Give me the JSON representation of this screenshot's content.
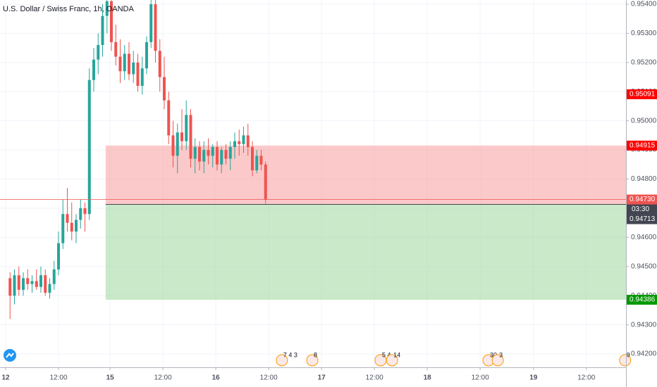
{
  "chart_data": {
    "type": "candlestick",
    "title": "U.S. Dollar / Swiss Franc, 1h, OANDA",
    "up_color": "#26a69a",
    "down_color": "#ef5350",
    "x": [
      1,
      2,
      3,
      4,
      5,
      6,
      7,
      8,
      9,
      10,
      11,
      12,
      13,
      14,
      15,
      16,
      17,
      18,
      19,
      20,
      21,
      22,
      23,
      24,
      25,
      26,
      27,
      28,
      29,
      30,
      31,
      32,
      33,
      34,
      35,
      36,
      37,
      38,
      39,
      40,
      41,
      42,
      43,
      44,
      45,
      46,
      47,
      48,
      49,
      50,
      51,
      52,
      53,
      54,
      55,
      56,
      57,
      58,
      59
    ],
    "open": [
      0.9446,
      0.944,
      0.9447,
      0.9442,
      0.9446,
      0.9444,
      0.9445,
      0.9443,
      0.9447,
      0.9441,
      0.9444,
      0.9449,
      0.9458,
      0.9468,
      0.9465,
      0.9462,
      0.9466,
      0.947,
      0.9468,
      0.9514,
      0.9521,
      0.9526,
      0.9536,
      0.9541,
      0.9527,
      0.9522,
      0.9517,
      0.9523,
      0.9516,
      0.952,
      0.9512,
      0.9518,
      0.9527,
      0.954,
      0.9524,
      0.9515,
      0.9507,
      0.9495,
      0.9488,
      0.9496,
      0.9493,
      0.9502,
      0.9487,
      0.9491,
      0.9486,
      0.949,
      0.9488,
      0.9491,
      0.9485,
      0.949,
      0.9487,
      0.9491,
      0.9493,
      0.9492,
      0.9495,
      0.9491,
      0.9483,
      0.9488,
      0.9485
    ],
    "high": [
      0.9448,
      0.9449,
      0.945,
      0.9448,
      0.9449,
      0.9447,
      0.9449,
      0.945,
      0.9449,
      0.9446,
      0.9452,
      0.9462,
      0.9473,
      0.9477,
      0.9472,
      0.9468,
      0.9473,
      0.9472,
      0.9518,
      0.9525,
      0.953,
      0.954,
      0.9545,
      0.9545,
      0.9533,
      0.9528,
      0.9526,
      0.9527,
      0.9524,
      0.9523,
      0.9522,
      0.9529,
      0.9545,
      0.9545,
      0.9528,
      0.9522,
      0.951,
      0.95,
      0.9499,
      0.9504,
      0.9507,
      0.9504,
      0.9494,
      0.9493,
      0.9493,
      0.9494,
      0.9492,
      0.9493,
      0.9491,
      0.9492,
      0.9493,
      0.9496,
      0.9497,
      0.9498,
      0.9499,
      0.9493,
      0.949,
      0.949,
      0.9486
    ],
    "low": [
      0.9432,
      0.9437,
      0.944,
      0.944,
      0.9442,
      0.9441,
      0.9442,
      0.9441,
      0.944,
      0.9439,
      0.9442,
      0.9447,
      0.9456,
      0.9462,
      0.9459,
      0.9458,
      0.9463,
      0.9462,
      0.9466,
      0.951,
      0.9516,
      0.9522,
      0.953,
      0.9524,
      0.9519,
      0.9513,
      0.9514,
      0.9514,
      0.9513,
      0.951,
      0.9509,
      0.9516,
      0.9525,
      0.952,
      0.951,
      0.9504,
      0.9492,
      0.9484,
      0.9482,
      0.949,
      0.949,
      0.9484,
      0.9482,
      0.9483,
      0.9482,
      0.9485,
      0.9484,
      0.9483,
      0.9482,
      0.9485,
      0.9483,
      0.9487,
      0.9488,
      0.9489,
      0.9488,
      0.9481,
      0.9482,
      0.9483,
      0.94715
    ],
    "close": [
      0.944,
      0.9447,
      0.9442,
      0.9446,
      0.9444,
      0.9445,
      0.9443,
      0.9447,
      0.9441,
      0.9444,
      0.9449,
      0.9458,
      0.9468,
      0.9465,
      0.9462,
      0.9466,
      0.947,
      0.9468,
      0.9514,
      0.9521,
      0.9526,
      0.9536,
      0.9541,
      0.9527,
      0.9522,
      0.9517,
      0.9523,
      0.9516,
      0.952,
      0.9512,
      0.9518,
      0.9527,
      0.954,
      0.9524,
      0.9515,
      0.9507,
      0.9495,
      0.9488,
      0.9496,
      0.9493,
      0.9502,
      0.9487,
      0.9491,
      0.9486,
      0.949,
      0.9488,
      0.9491,
      0.9485,
      0.949,
      0.9487,
      0.9491,
      0.9493,
      0.9492,
      0.9495,
      0.9491,
      0.9483,
      0.9488,
      0.9485,
      0.9473
    ],
    "xlim": [
      -1.28,
      140.8
    ],
    "xticks": [
      {
        "value": 0,
        "label": "12"
      },
      {
        "value": 12,
        "label": "12:00"
      },
      {
        "value": 23.7,
        "label": "15"
      },
      {
        "value": 35.7,
        "label": "12:00"
      },
      {
        "value": 47.7,
        "label": "16"
      },
      {
        "value": 59.7,
        "label": "12:00"
      },
      {
        "value": 71.7,
        "label": "17"
      },
      {
        "value": 83.7,
        "label": "12:00"
      },
      {
        "value": 95.7,
        "label": "18"
      },
      {
        "value": 107.7,
        "label": "12:00"
      },
      {
        "value": 119.8,
        "label": "19"
      },
      {
        "value": 131.8,
        "label": "12:00"
      }
    ],
    "ylim": [
      0.941542,
      0.954145
    ],
    "yticks": [
      {
        "value": 0.954,
        "label": "0.95400"
      },
      {
        "value": 0.953,
        "label": "0.95300"
      },
      {
        "value": 0.952,
        "label": "0.95200"
      },
      {
        "value": 0.951,
        "label": "0.95100"
      },
      {
        "value": 0.95,
        "label": "0.95000"
      },
      {
        "value": 0.949,
        "label": "0.94900"
      },
      {
        "value": 0.948,
        "label": "0.94800"
      },
      {
        "value": 0.947,
        "label": "0.94700"
      },
      {
        "value": 0.946,
        "label": "0.94600"
      },
      {
        "value": 0.945,
        "label": "0.94500"
      },
      {
        "value": 0.944,
        "label": "0.94400"
      },
      {
        "value": 0.943,
        "label": "0.94300"
      },
      {
        "value": 0.942,
        "label": "0.94200"
      }
    ],
    "grid": true,
    "position": {
      "x_start": 22.7,
      "entry": 0.94713,
      "stop": 0.94915,
      "target": 0.94386,
      "stop_color": "#f8a5a5",
      "target_color": "#a5dba5"
    },
    "last_price_line": 0.9473,
    "price_labels": [
      {
        "value": 0.95091,
        "label": "0.95091",
        "color": "#ff0000"
      },
      {
        "value": 0.94915,
        "label": "0.94915",
        "color": "#ff0000"
      },
      {
        "value": 0.9473,
        "label": "0.94730",
        "color": "#ef5350",
        "countdown": "03:30"
      },
      {
        "value": 0.94713,
        "label": "0.94713",
        "color": "#434651"
      },
      {
        "value": 0.94386,
        "label": "0.94386",
        "color": "#009900"
      }
    ],
    "events": [
      {
        "x": 62.7,
        "label": "7 4 3"
      },
      {
        "x": 69.6,
        "label": "8"
      },
      {
        "x": 85.1,
        "label": "5 4"
      },
      {
        "x": 87.7,
        "label": "14"
      },
      {
        "x": 109.6,
        "label": "30"
      },
      {
        "x": 111.7,
        "label": "3"
      },
      {
        "x": 140.6,
        "label": "9"
      }
    ]
  }
}
